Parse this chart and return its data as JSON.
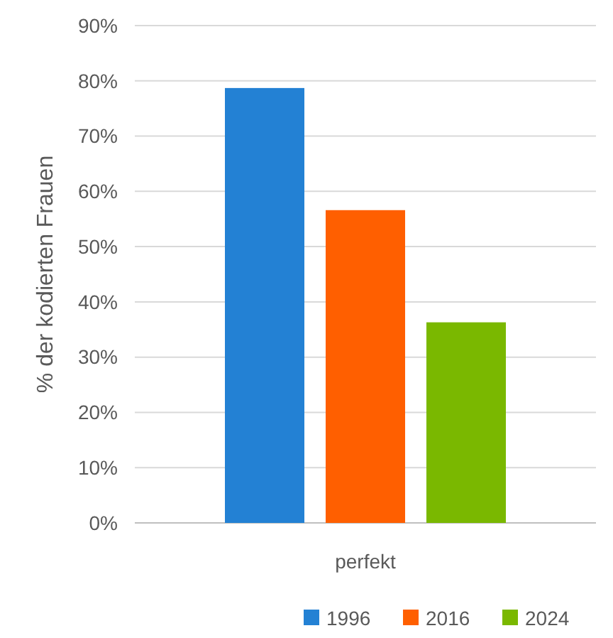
{
  "chart_data": {
    "type": "bar",
    "ylabel": "% der kodierten Frauen",
    "categories": [
      "perfekt"
    ],
    "series": [
      {
        "name": "1996",
        "color": "#2381d4",
        "values": [
          78.7
        ]
      },
      {
        "name": "2016",
        "color": "#ff5f00",
        "values": [
          56.6
        ]
      },
      {
        "name": "2024",
        "color": "#7ab800",
        "values": [
          36.3
        ]
      }
    ],
    "ylim": [
      0,
      90
    ],
    "yticks": [
      {
        "value": 0,
        "label": "0%"
      },
      {
        "value": 10,
        "label": "10%"
      },
      {
        "value": 20,
        "label": "20%"
      },
      {
        "value": 30,
        "label": "30%"
      },
      {
        "value": 40,
        "label": "40%"
      },
      {
        "value": 50,
        "label": "50%"
      },
      {
        "value": 60,
        "label": "60%"
      },
      {
        "value": 70,
        "label": "70%"
      },
      {
        "value": 80,
        "label": "80%"
      },
      {
        "value": 90,
        "label": "90%"
      }
    ],
    "grid": "y",
    "legend": "bottom right"
  }
}
